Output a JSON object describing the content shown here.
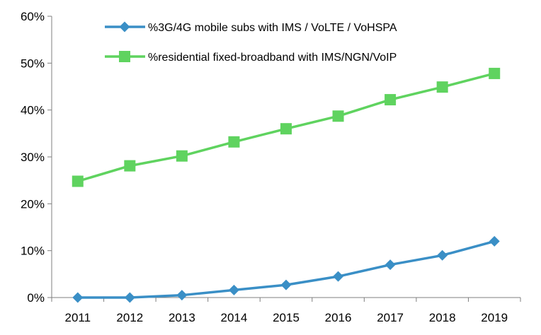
{
  "chart_data": {
    "type": "line",
    "x": [
      "2011",
      "2012",
      "2013",
      "2014",
      "2015",
      "2016",
      "2017",
      "2018",
      "2019"
    ],
    "yticks": [
      "0%",
      "10%",
      "20%",
      "30%",
      "40%",
      "50%",
      "60%"
    ],
    "ylim": [
      0,
      60
    ],
    "y_unit": "%",
    "grid": false,
    "legend_position": "top",
    "series": [
      {
        "name": "%3G/4G mobile subs with IMS / VoLTE / VoHSPA",
        "values": [
          0,
          0,
          0.5,
          1.6,
          2.7,
          4.5,
          7.0,
          9.0,
          12.0
        ],
        "color": "#3a8fc6",
        "marker": "diamond"
      },
      {
        "name": "%residential fixed-broadband with IMS/NGN/VoIP",
        "values": [
          24.8,
          28.1,
          30.2,
          33.2,
          36.0,
          38.7,
          42.2,
          44.9,
          47.8
        ],
        "color": "#5fd35f",
        "marker": "square"
      }
    ]
  }
}
